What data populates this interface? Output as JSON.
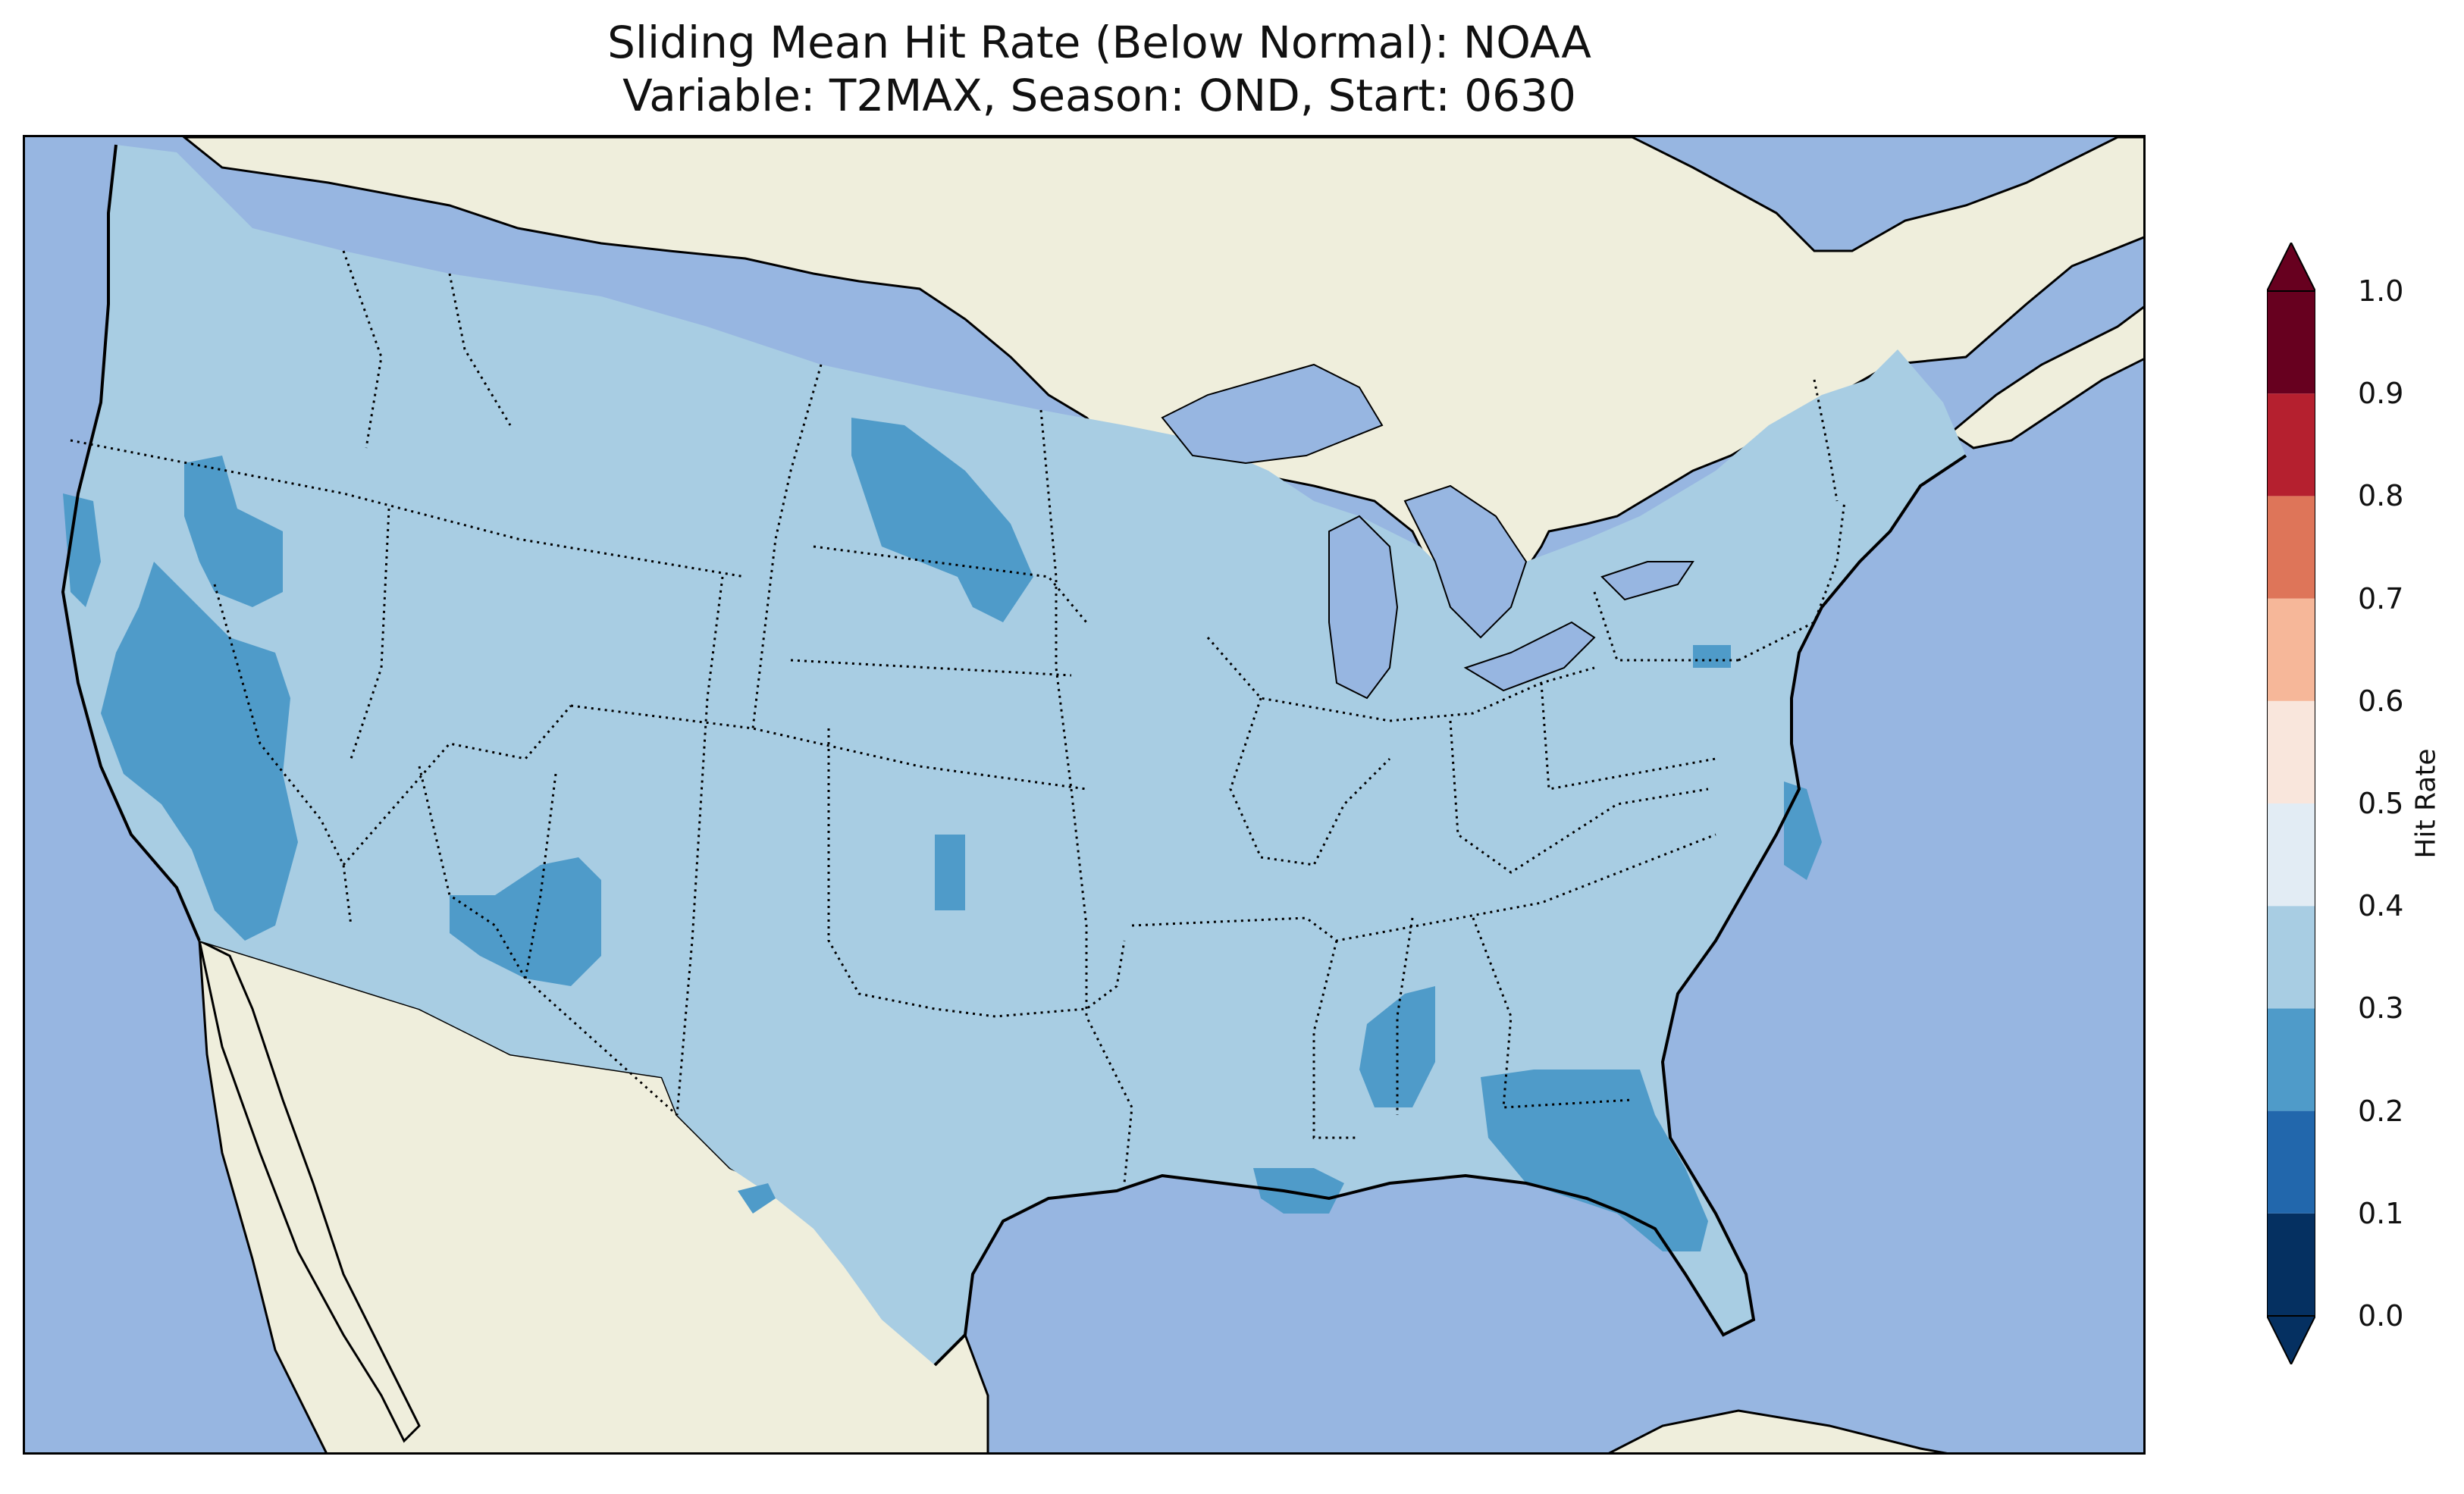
{
  "title": {
    "line1": "Sliding Mean Hit Rate (Below Normal): NOAA",
    "line2": "Variable: T2MAX, Season: OND, Start: 0630"
  },
  "colors": {
    "ocean": "#97b6e1",
    "land": "#efeedc",
    "hit_rate_0.2_0.3": "#5199c9",
    "hit_rate_0.3_0.4": "#a8cde3",
    "lakes": "#97b6e1"
  },
  "colorbar": {
    "label": "Hit Rate",
    "ticks": [
      "0.0",
      "0.1",
      "0.2",
      "0.3",
      "0.4",
      "0.5",
      "0.6",
      "0.7",
      "0.8",
      "0.9",
      "1.0"
    ],
    "bins": [
      {
        "from": 0.0,
        "to": 0.1,
        "color": "#053061"
      },
      {
        "from": 0.1,
        "to": 0.2,
        "color": "#2267ac"
      },
      {
        "from": 0.2,
        "to": 0.3,
        "color": "#4f9bc9"
      },
      {
        "from": 0.3,
        "to": 0.4,
        "color": "#a8cde3"
      },
      {
        "from": 0.4,
        "to": 0.5,
        "color": "#e2ecf4"
      },
      {
        "from": 0.5,
        "to": 0.6,
        "color": "#f9e6dc"
      },
      {
        "from": 0.6,
        "to": 0.7,
        "color": "#f6b799"
      },
      {
        "from": 0.7,
        "to": 0.8,
        "color": "#de7559"
      },
      {
        "from": 0.8,
        "to": 0.9,
        "color": "#b5202f"
      },
      {
        "from": 0.9,
        "to": 1.0,
        "color": "#67001f"
      }
    ],
    "extend": "both"
  },
  "map": {
    "region": "Contiguous United States",
    "background_hit_rate_bin": "0.3-0.4",
    "lower_hit_rate_regions_bin": "0.2-0.3",
    "lower_hit_rate_regions": [
      "Northern California coast",
      "Northeastern California / Lassen",
      "Central Valley and Sierra Nevada, California",
      "Western North Dakota",
      "Central Arizona / Mogollon Rim",
      "Texas Panhandle / western Oklahoma",
      "Southwestern Alabama / Florida Panhandle coast",
      "Northern and central Florida",
      "Southeastern Louisiana coast",
      "Eastern North Carolina coast",
      "Northern Virginia",
      "Big Bend, Texas"
    ]
  }
}
